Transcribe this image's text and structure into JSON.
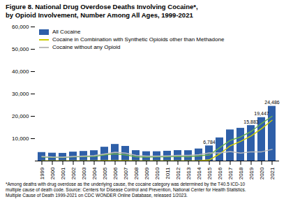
{
  "chart_data": {
    "type": "bar",
    "title": "Figure 8. National Drug Overdose Deaths Involving Cocaine*,",
    "subtitle": "by Opioid Involvement, Number Among All Ages, 1999-2021",
    "footnote": [
      "*Among deaths with drug overdose as the underlying cause, the cocaine category was determined by the T40.5 ICD-10",
      "multiple cause of death code. Source: Centers for Disease Control and Prevention, National Center for Health Statistics.",
      "Multiple Cause of Death 1999-2021 on CDC WONDER Online Database, released 1/2023."
    ],
    "categories": [
      "1999",
      "2000",
      "2001",
      "2002",
      "2003",
      "2004",
      "2005",
      "2006",
      "2007",
      "2008",
      "2009",
      "2010",
      "2011",
      "2012",
      "2013",
      "2014",
      "2015",
      "2016",
      "2017",
      "2018",
      "2019",
      "2020",
      "2021"
    ],
    "series": [
      {
        "name": "All Cocaine",
        "type": "bar",
        "color": "#2E5FA8",
        "values": [
          3822,
          3544,
          3457,
          4020,
          4308,
          4641,
          6208,
          7448,
          6574,
          4673,
          4183,
          4183,
          4404,
          4697,
          4651,
          5415,
          6784,
          10375,
          13942,
          14666,
          15883,
          19447,
          24486
        ]
      },
      {
        "name": "Cocaine in Combination with Synthetic Opioids other than Methadone",
        "type": "line",
        "color": "#CCCC00",
        "values": [
          80,
          80,
          80,
          90,
          90,
          100,
          150,
          180,
          160,
          100,
          80,
          80,
          80,
          90,
          90,
          180,
          450,
          3200,
          6800,
          8800,
          11200,
          14500,
          18200
        ]
      },
      {
        "type": "line",
        "color": "#6AB04C",
        "values": [
          1800,
          1650,
          1550,
          1850,
          1950,
          2050,
          2750,
          3200,
          2750,
          1900,
          1700,
          1850,
          1900,
          2000,
          1900,
          2300,
          2700,
          6000,
          9200,
          10800,
          13200,
          16800,
          20000
        ]
      },
      {
        "name": "Cocaine without any Opioid",
        "type": "line",
        "color": "#BBBBBB",
        "values": [
          2000,
          1800,
          1750,
          2050,
          2200,
          2400,
          3100,
          3900,
          3500,
          2500,
          2200,
          2150,
          2300,
          2500,
          2500,
          2800,
          3600,
          3600,
          4200,
          3500,
          4100,
          4100,
          5200
        ]
      }
    ],
    "ylim": [
      0,
      60000
    ],
    "yticks": [
      {
        "value": 10000,
        "label": "10,000"
      },
      {
        "value": 20000,
        "label": "20,000"
      },
      {
        "value": 30000,
        "label": "30,000"
      },
      {
        "value": 40000,
        "label": "40,000"
      },
      {
        "value": 50000,
        "label": "50,000"
      },
      {
        "value": 60000,
        "label": "60,000"
      }
    ],
    "annotations": [
      {
        "category": "2015",
        "y": 6784,
        "text": "6,784"
      },
      {
        "category": "2019",
        "y": 15883,
        "text": "15,883"
      },
      {
        "category": "2020",
        "y": 19447,
        "text": "19,447"
      },
      {
        "category": "2021",
        "y": 24486,
        "text": "24,486"
      }
    ],
    "legend": "upper left",
    "grid": false
  }
}
